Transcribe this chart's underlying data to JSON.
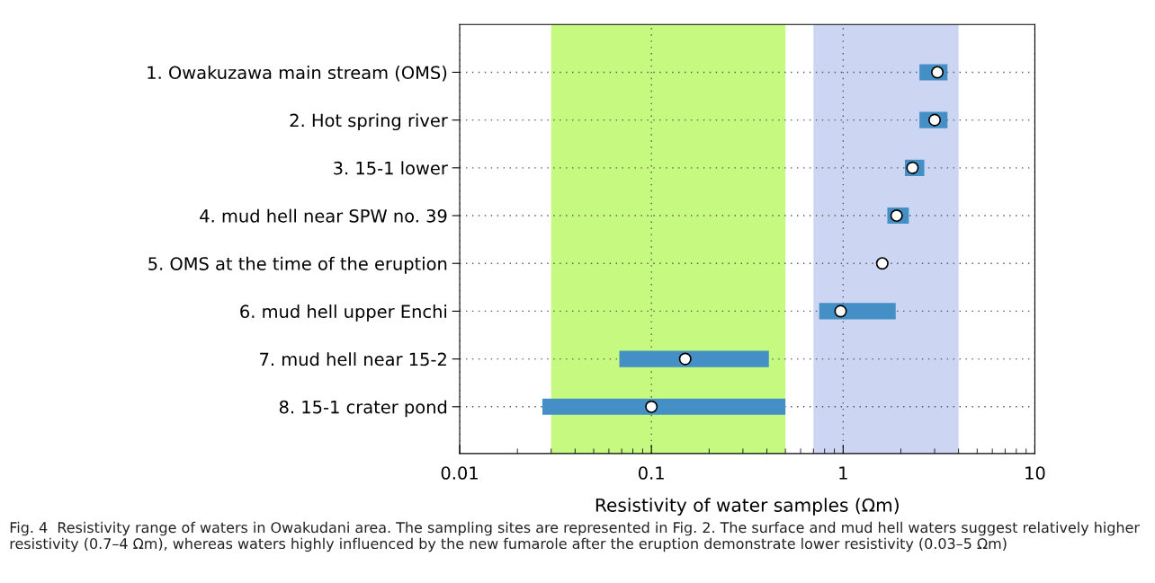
{
  "chart_data": {
    "type": "bar",
    "orientation": "horizontal",
    "log": "x",
    "categories": [
      "1. Owakuzawa main stream (OMS)",
      "2. Hot spring river",
      "3. 15-1 lower",
      "4. mud hell near SPW no. 39",
      "5. OMS at the time of the eruption",
      "6. mud hell upper Enchi",
      "7. mud hell near 15-2",
      "8. 15-1 crater pond"
    ],
    "base": [
      2.5,
      2.5,
      2.1,
      1.7,
      null,
      0.75,
      0.068,
      0.027
    ],
    "values": [
      1.0,
      1.0,
      0.55,
      0.5,
      null,
      1.13,
      0.342,
      0.473
    ],
    "color": "#4490c6",
    "series": [
      {
        "type": "scatter",
        "color": "#ffffff",
        "marker": "circle",
        "values": [
          3.1,
          3.0,
          2.3,
          1.9,
          1.6,
          0.97,
          0.15,
          0.1
        ]
      }
    ],
    "bands": [
      {
        "axis": "x",
        "from": 0.03,
        "to": 0.5,
        "color": "#c6f97f"
      },
      {
        "axis": "x",
        "from": 0.7,
        "to": 4,
        "color": "#ccd5f2"
      }
    ],
    "xlim": [
      0.01,
      10
    ],
    "xticks": [
      0.01,
      0.1,
      1,
      10
    ],
    "xlabel": "Resistivity of water samples (Ωm)",
    "grid": true,
    "annotations": [
      "Fig. 4  Resistivity range of waters in Owakudani area. The sampling sites are represented in Fig. 2. The surface and mud hell waters suggest relatively higher resistivity (0.7–4 Ωm), whereas waters highly influenced by the new fumarole after the eruption demonstrate lower resistivity (0.03–5 Ωm)"
    ]
  }
}
